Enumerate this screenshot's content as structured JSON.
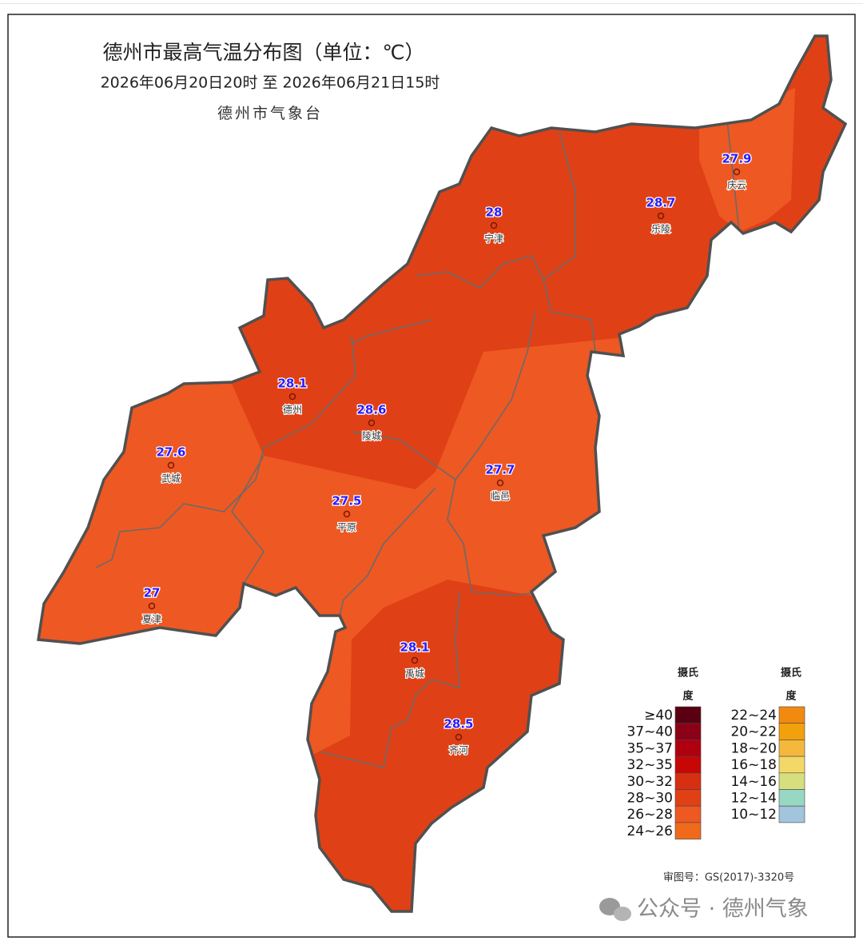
{
  "title": "德州市最高气温分布图（单位：℃）",
  "subtitle": "2026年06月20日20时  至  2026年06月21日15时",
  "issuer": "德州市气象台",
  "stations": [
    {
      "name": "庆云",
      "value": 27.9
    },
    {
      "name": "乐陵",
      "value": 28.7
    },
    {
      "name": "宁津",
      "value": 28
    },
    {
      "name": "德州",
      "value": 28.1
    },
    {
      "name": "陵城",
      "value": 28.6
    },
    {
      "name": "武城",
      "value": 27.6
    },
    {
      "name": "平原",
      "value": 27.5
    },
    {
      "name": "临邑",
      "value": 27.7
    },
    {
      "name": "夏津",
      "value": 27
    },
    {
      "name": "禹城",
      "value": 28.1
    },
    {
      "name": "齐河",
      "value": 28.5
    }
  ],
  "legend": [
    {
      "title": [
        "摄氏",
        "度"
      ],
      "items": [
        {
          "label": "≥40",
          "color": "#5a0012"
        },
        {
          "label": "37~40",
          "color": "#8c0018"
        },
        {
          "label": "35~37",
          "color": "#b00010"
        },
        {
          "label": "32~35",
          "color": "#c80606"
        },
        {
          "label": "30~32",
          "color": "#d62f12"
        },
        {
          "label": "28~30",
          "color": "#e04016"
        },
        {
          "label": "26~28",
          "color": "#ee5822"
        },
        {
          "label": "24~26",
          "color": "#f06a1c"
        }
      ]
    },
    {
      "title": [
        "摄氏",
        "度"
      ],
      "items": [
        {
          "label": "22~24",
          "color": "#f28a10"
        },
        {
          "label": "20~22",
          "color": "#f2a00c"
        },
        {
          "label": "18~20",
          "color": "#f5b83c"
        },
        {
          "label": "16~18",
          "color": "#f3d868"
        },
        {
          "label": "14~16",
          "color": "#d6de7e"
        },
        {
          "label": "12~14",
          "color": "#98d8c2"
        },
        {
          "label": "10~12",
          "color": "#a2c4dc"
        }
      ]
    }
  ],
  "approval": "审图号：GS(2017)-3320号",
  "watermark": "公众号 · 德州气象"
}
